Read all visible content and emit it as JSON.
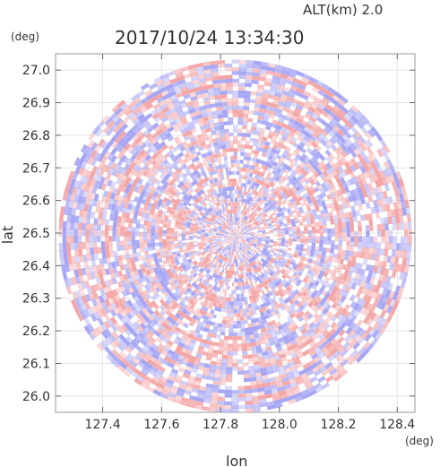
{
  "chart_data": {
    "type": "heatmap",
    "title": "2017/10/24 13:34:30",
    "subtitle": "ALT(km) 2.0",
    "xlabel": "lon",
    "ylabel": "lat",
    "x_unit": "(deg)",
    "y_unit": "(deg)",
    "xlim": [
      127.24,
      128.46
    ],
    "ylim": [
      25.95,
      27.05
    ],
    "x_ticks": [
      "127.4",
      "127.6",
      "127.8",
      "128.0",
      "128.2",
      "128.4"
    ],
    "y_ticks": [
      "26.0",
      "26.1",
      "26.2",
      "26.3",
      "26.4",
      "26.5",
      "26.6",
      "26.7",
      "26.8",
      "26.9",
      "27.0"
    ],
    "center": {
      "lon": 127.85,
      "lat": 26.49
    },
    "radius_deg": 0.6,
    "grid": true,
    "colors": {
      "positive": "#f4a6a6",
      "negative": "#a6a6f4",
      "neutral": "#ffffff"
    }
  }
}
